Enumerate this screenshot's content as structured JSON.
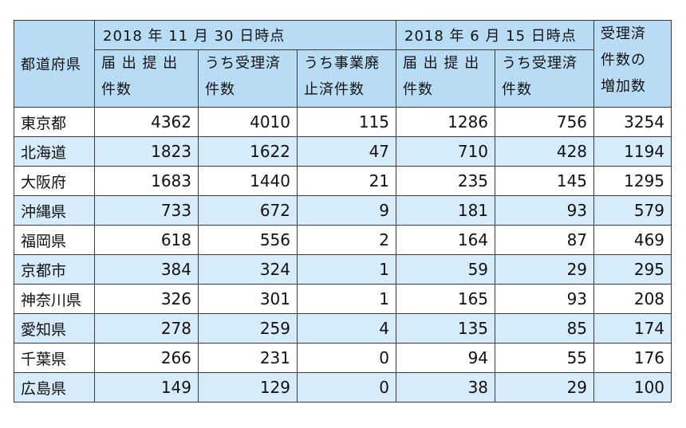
{
  "table": {
    "header": {
      "prefecture": "都道府県",
      "group_nov": "2018 年 11 月 30 日時点",
      "group_jun": "2018 年 6 月 15 日時点",
      "increase": [
        "受理済",
        "件数の",
        "増加数"
      ],
      "nov_filed": [
        "届 出 提 出",
        "件数"
      ],
      "nov_accepted": [
        "うち受理済",
        "件数"
      ],
      "nov_abolished": [
        "うち事業廃",
        "止済件数"
      ],
      "jun_filed": [
        "届 出 提 出",
        "件数"
      ],
      "jun_accepted": [
        "うち受理済",
        "件数"
      ]
    },
    "rows": [
      {
        "pref": "東京都",
        "nov_filed": "4362",
        "nov_accepted": "4010",
        "nov_abolished": "115",
        "jun_filed": "1286",
        "jun_accepted": "756",
        "increase": "3254"
      },
      {
        "pref": "北海道",
        "nov_filed": "1823",
        "nov_accepted": "1622",
        "nov_abolished": "47",
        "jun_filed": "710",
        "jun_accepted": "428",
        "increase": "1194"
      },
      {
        "pref": "大阪府",
        "nov_filed": "1683",
        "nov_accepted": "1440",
        "nov_abolished": "21",
        "jun_filed": "235",
        "jun_accepted": "145",
        "increase": "1295"
      },
      {
        "pref": "沖縄県",
        "nov_filed": "733",
        "nov_accepted": "672",
        "nov_abolished": "9",
        "jun_filed": "181",
        "jun_accepted": "93",
        "increase": "579"
      },
      {
        "pref": "福岡県",
        "nov_filed": "618",
        "nov_accepted": "556",
        "nov_abolished": "2",
        "jun_filed": "164",
        "jun_accepted": "87",
        "increase": "469"
      },
      {
        "pref": "京都市",
        "nov_filed": "384",
        "nov_accepted": "324",
        "nov_abolished": "1",
        "jun_filed": "59",
        "jun_accepted": "29",
        "increase": "295"
      },
      {
        "pref": "神奈川県",
        "nov_filed": "326",
        "nov_accepted": "301",
        "nov_abolished": "1",
        "jun_filed": "165",
        "jun_accepted": "93",
        "increase": "208"
      },
      {
        "pref": "愛知県",
        "nov_filed": "278",
        "nov_accepted": "259",
        "nov_abolished": "4",
        "jun_filed": "135",
        "jun_accepted": "85",
        "increase": "174"
      },
      {
        "pref": "千葉県",
        "nov_filed": "266",
        "nov_accepted": "231",
        "nov_abolished": "0",
        "jun_filed": "94",
        "jun_accepted": "55",
        "increase": "176"
      },
      {
        "pref": "広島県",
        "nov_filed": "149",
        "nov_accepted": "129",
        "nov_abolished": "0",
        "jun_filed": "38",
        "jun_accepted": "29",
        "increase": "100"
      }
    ]
  }
}
